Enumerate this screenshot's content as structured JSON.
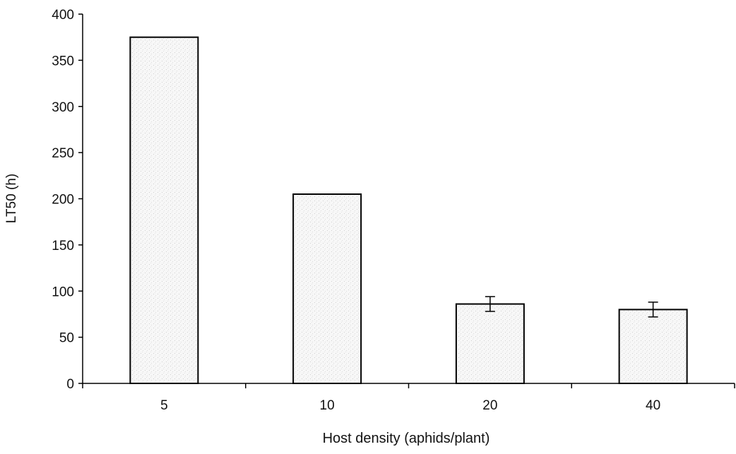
{
  "chart_data": {
    "type": "bar",
    "title": "",
    "xlabel": "Host density (aphids/plant)",
    "ylabel": "LT50 (h)",
    "categories": [
      "5",
      "10",
      "20",
      "40"
    ],
    "values": [
      375,
      205,
      86,
      80
    ],
    "error_bars": [
      null,
      null,
      8,
      8
    ],
    "ylim": [
      0,
      400
    ],
    "yticks": [
      0,
      50,
      100,
      150,
      200,
      250,
      300,
      350,
      400
    ],
    "grid": false,
    "legend": "none",
    "colors": {
      "bar_fill": "#f6f6f6",
      "bar_stroke": "#000000",
      "axis": "#000000"
    }
  }
}
